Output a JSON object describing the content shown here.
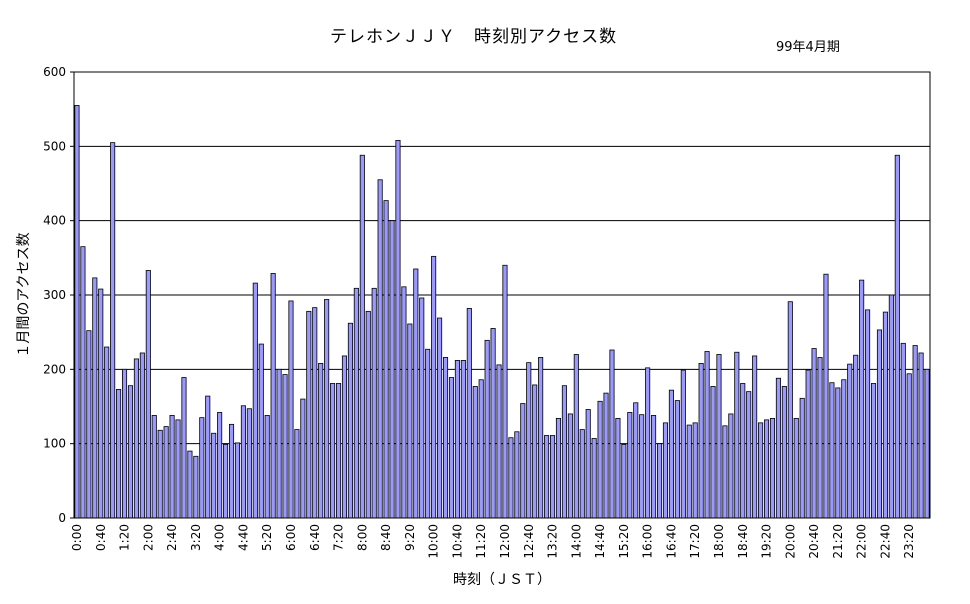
{
  "chart_data": {
    "type": "bar",
    "title": "テレホンＪＪＹ　時刻別アクセス数",
    "subtitle": "99年4月期",
    "xlabel": "時刻（ＪＳＴ）",
    "ylabel": "１月間のアクセス数",
    "ylim": [
      0,
      600
    ],
    "yticks": [
      0,
      100,
      200,
      300,
      400,
      500,
      600
    ],
    "grid": true,
    "legend": "none",
    "xtick_labels": [
      "0:00",
      "0:40",
      "1:20",
      "2:00",
      "2:40",
      "3:20",
      "4:00",
      "4:40",
      "5:20",
      "6:00",
      "6:40",
      "7:20",
      "8:00",
      "8:40",
      "9:20",
      "10:00",
      "10:40",
      "11:20",
      "12:00",
      "12:40",
      "13:20",
      "14:00",
      "14:40",
      "15:20",
      "16:00",
      "16:40",
      "17:20",
      "18:00",
      "18:40",
      "19:20",
      "20:00",
      "20:40",
      "21:20",
      "22:00",
      "22:40",
      "23:20"
    ],
    "values": [
      555,
      365,
      252,
      323,
      308,
      230,
      505,
      173,
      200,
      178,
      214,
      222,
      333,
      138,
      118,
      123,
      138,
      132,
      189,
      90,
      83,
      135,
      164,
      114,
      142,
      99,
      126,
      101,
      151,
      147,
      316,
      234,
      138,
      329,
      200,
      193,
      292,
      119,
      160,
      278,
      283,
      208,
      294,
      181,
      181,
      218,
      262,
      309,
      488,
      278,
      309,
      455,
      427,
      400,
      508,
      311,
      261,
      335,
      296,
      227,
      352,
      269,
      216,
      189,
      212,
      212,
      282,
      177,
      186,
      239,
      255,
      206,
      340,
      108,
      116,
      154,
      209,
      179,
      216,
      111,
      111,
      134,
      178,
      140,
      220,
      119,
      146,
      107,
      157,
      168,
      226,
      134,
      99,
      142,
      155,
      139,
      202,
      138,
      100,
      128,
      172,
      158,
      199,
      125,
      128,
      208,
      224,
      177,
      220,
      124,
      140,
      223,
      181,
      170,
      218,
      128,
      132,
      134,
      188,
      177,
      291,
      134,
      161,
      199,
      228,
      216,
      328,
      182,
      175,
      186,
      207,
      219,
      320,
      280,
      181,
      253,
      277,
      300,
      488,
      235,
      194,
      232,
      222,
      200
    ],
    "bar_color": "#9999ff",
    "bar_stroke": "#000000",
    "gridline_color": "#000000"
  }
}
